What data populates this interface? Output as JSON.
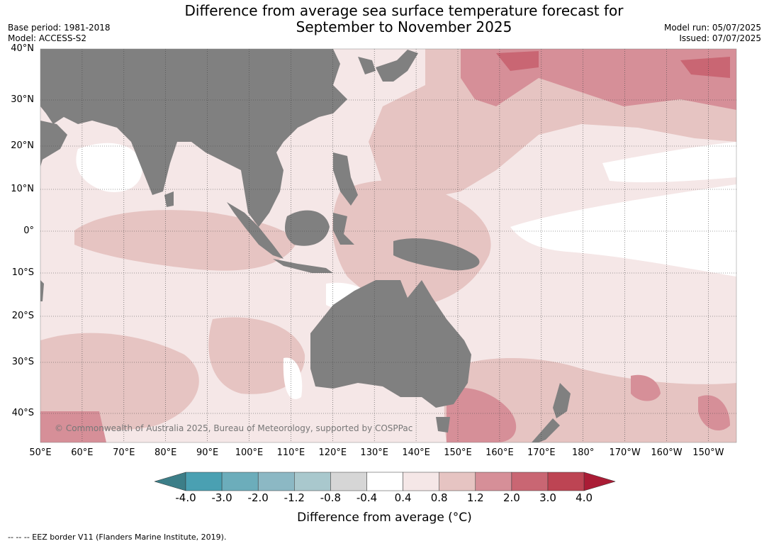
{
  "header": {
    "title_line1": "Difference from average sea surface temperature forecast for",
    "title_line2": "September to November 2025",
    "base_period": "Base period: 1981-2018",
    "model": "Model: ACCESS-S2",
    "model_run": "Model run: 05/07/2025",
    "issued": "Issued: 07/07/2025"
  },
  "map": {
    "copyright": "© Commonwealth of Australia 2025, Bureau of Meteorology, supported by COSPPac",
    "lat_labels": [
      "40°N",
      "30°N",
      "20°N",
      "10°N",
      "0°",
      "10°S",
      "20°S",
      "30°S",
      "40°S"
    ],
    "lon_labels": [
      "50°E",
      "60°E",
      "70°E",
      "80°E",
      "90°E",
      "100°E",
      "110°E",
      "120°E",
      "130°E",
      "140°E",
      "150°E",
      "160°E",
      "170°E",
      "180°",
      "170°W",
      "160°W",
      "150°W"
    ],
    "colors": {
      "land": "#808080",
      "anom_neutral": "#ffffff",
      "anom_0_4_to_0_8": "#f5e7e7",
      "anom_0_8_to_1_2": "#e6c4c2",
      "anom_1_2_to_2_0": "#d68f98",
      "anom_2_0_to_3_0": "#c96673",
      "anom_cool_0_8": "#a9c8cd"
    }
  },
  "colorbar": {
    "ticks": [
      "-4.0",
      "-3.0",
      "-2.0",
      "-1.2",
      "-0.8",
      "-0.4",
      "0.4",
      "0.8",
      "1.2",
      "2.0",
      "3.0",
      "4.0"
    ],
    "colors": [
      "#3c7e88",
      "#4aa0b2",
      "#6cadbb",
      "#8cb8c4",
      "#a9c8cd",
      "#d6d6d6",
      "#ffffff",
      "#f5e7e7",
      "#e6c4c2",
      "#d68f98",
      "#c96673",
      "#bd4453",
      "#aa1c35"
    ],
    "title": "Difference from average (°C)"
  },
  "footnote": "--  --  -- EEZ border V11 (Flanders Marine Institute, 2019)."
}
